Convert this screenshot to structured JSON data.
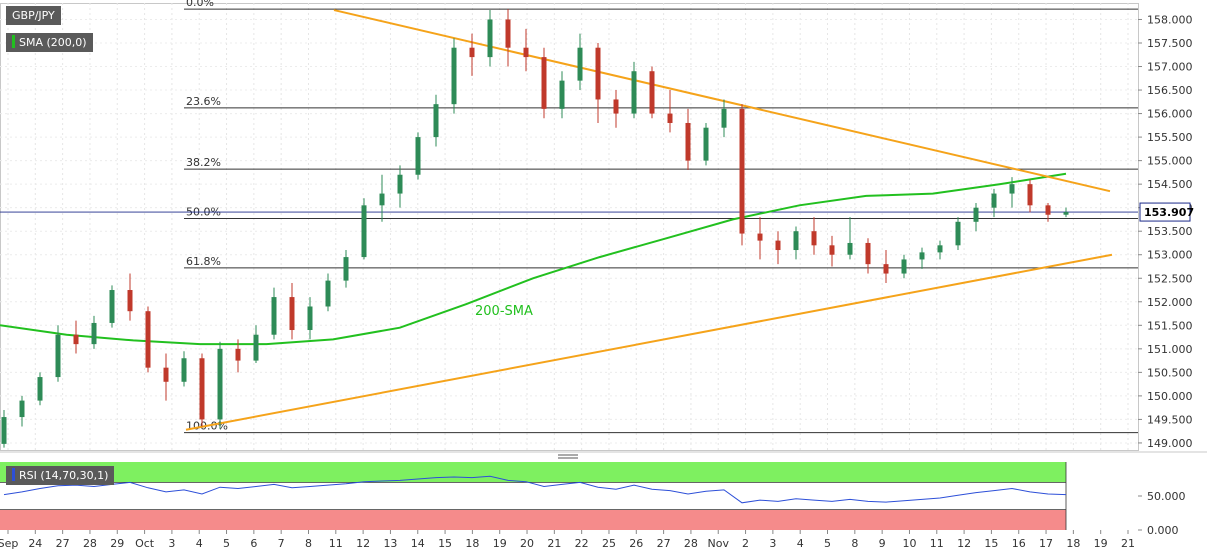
{
  "instrument": "GBP/JPY",
  "indicator_main": "SMA (200,0)",
  "indicator_rsi": "RSI (14,70,30,1)",
  "sma_annotation": "200-SMA",
  "last_price": "153.907",
  "colors": {
    "bull_candle": "#2e8b57",
    "bear_candle": "#c0392b",
    "sma_line": "#22c01f",
    "trend_lines": "#f5a31a",
    "rsi_line": "#2d4fd8",
    "rsi_overbought_zone": "#7ef060",
    "rsi_oversold_zone": "#f58b8b",
    "price_tag": "#ffffff"
  },
  "chart_data": [
    {
      "type": "candlestick",
      "title": "GBP/JPY",
      "y_ticks": [
        "158.000",
        "157.500",
        "157.000",
        "156.500",
        "156.000",
        "155.500",
        "155.000",
        "154.500",
        "154.000",
        "153.500",
        "153.000",
        "152.500",
        "152.000",
        "151.500",
        "151.000",
        "150.500",
        "150.000",
        "149.500",
        "149.000"
      ],
      "ylim": [
        148.85,
        158.35
      ],
      "x_ticks": [
        "Sep",
        "24",
        "27",
        "28",
        "29",
        "Oct",
        "3",
        "4",
        "5",
        "6",
        "7",
        "8",
        "11",
        "12",
        "13",
        "14",
        "15",
        "18",
        "19",
        "20",
        "21",
        "22",
        "25",
        "26",
        "27",
        "28",
        "Nov",
        "2",
        "3",
        "4",
        "5",
        "8",
        "9",
        "10",
        "11",
        "12",
        "15",
        "16",
        "17",
        "18",
        "19",
        "21"
      ],
      "fibonacci_levels": [
        {
          "label": "0.0%",
          "value": 158.22
        },
        {
          "label": "23.6%",
          "value": 156.12
        },
        {
          "label": "38.2%",
          "value": 154.82
        },
        {
          "label": "50.0%",
          "value": 153.77
        },
        {
          "label": "61.8%",
          "value": 152.72
        },
        {
          "label": "100.0%",
          "value": 149.22
        }
      ],
      "current_price": 153.907,
      "sma_200": [
        151.5,
        151.3,
        151.18,
        151.1,
        151.1,
        151.2,
        151.45,
        151.95,
        152.5,
        152.95,
        153.35,
        153.75,
        154.05,
        154.25,
        154.3,
        154.5,
        154.72
      ],
      "trend_lines": [
        {
          "name": "resistance",
          "points": [
            [
              20,
              158.2
            ],
            [
              62,
              154.35
            ]
          ]
        },
        {
          "name": "support",
          "points": [
            [
              0,
              149.28
            ],
            [
              62,
              153.0
            ]
          ]
        }
      ],
      "ohlc": [
        [
          148.98,
          149.7,
          148.9,
          149.55
        ],
        [
          149.55,
          150.0,
          149.35,
          149.9
        ],
        [
          149.9,
          150.5,
          149.8,
          150.4
        ],
        [
          150.4,
          151.5,
          150.3,
          151.3
        ],
        [
          151.3,
          151.6,
          150.9,
          151.1
        ],
        [
          151.1,
          151.7,
          151.0,
          151.55
        ],
        [
          151.55,
          152.35,
          151.45,
          152.25
        ],
        [
          152.25,
          152.6,
          151.6,
          151.8
        ],
        [
          151.8,
          151.9,
          150.5,
          150.6
        ],
        [
          150.6,
          150.9,
          149.9,
          150.3
        ],
        [
          150.3,
          150.95,
          150.2,
          150.8
        ],
        [
          150.8,
          150.9,
          149.35,
          149.5
        ],
        [
          149.5,
          151.15,
          149.3,
          151.0
        ],
        [
          151.0,
          151.2,
          150.5,
          150.75
        ],
        [
          150.75,
          151.5,
          150.7,
          151.3
        ],
        [
          151.3,
          152.3,
          151.2,
          152.1
        ],
        [
          152.1,
          152.4,
          151.2,
          151.4
        ],
        [
          151.4,
          152.1,
          151.2,
          151.9
        ],
        [
          151.9,
          152.6,
          151.8,
          152.45
        ],
        [
          152.45,
          153.1,
          152.3,
          152.95
        ],
        [
          152.95,
          154.2,
          152.9,
          154.05
        ],
        [
          154.05,
          154.7,
          153.7,
          154.3
        ],
        [
          154.3,
          154.9,
          154.0,
          154.7
        ],
        [
          154.7,
          155.6,
          154.6,
          155.5
        ],
        [
          155.5,
          156.4,
          155.3,
          156.2
        ],
        [
          156.2,
          157.6,
          156.0,
          157.4
        ],
        [
          157.4,
          157.7,
          156.8,
          157.2
        ],
        [
          157.2,
          158.2,
          157.0,
          158.0
        ],
        [
          158.0,
          158.22,
          157.0,
          157.4
        ],
        [
          157.4,
          157.8,
          156.9,
          157.2
        ],
        [
          157.2,
          157.4,
          155.9,
          156.1
        ],
        [
          156.1,
          156.9,
          155.9,
          156.7
        ],
        [
          156.7,
          157.7,
          156.5,
          157.4
        ],
        [
          157.4,
          157.5,
          155.8,
          156.3
        ],
        [
          156.3,
          156.5,
          155.7,
          156.0
        ],
        [
          156.0,
          157.1,
          155.9,
          156.9
        ],
        [
          156.9,
          157.0,
          155.9,
          156.0
        ],
        [
          156.0,
          156.5,
          155.6,
          155.8
        ],
        [
          155.8,
          156.1,
          154.8,
          155.0
        ],
        [
          155.0,
          155.8,
          154.9,
          155.7
        ],
        [
          155.7,
          156.3,
          155.5,
          156.1
        ],
        [
          156.1,
          156.2,
          153.2,
          153.45
        ],
        [
          153.45,
          153.8,
          152.9,
          153.3
        ],
        [
          153.3,
          153.5,
          152.8,
          153.1
        ],
        [
          153.1,
          153.6,
          152.9,
          153.5
        ],
        [
          153.5,
          153.8,
          153.0,
          153.2
        ],
        [
          153.2,
          153.4,
          152.75,
          153.0
        ],
        [
          153.0,
          153.8,
          152.9,
          153.25
        ],
        [
          153.25,
          153.35,
          152.6,
          152.8
        ],
        [
          152.8,
          153.1,
          152.4,
          152.6
        ],
        [
          152.6,
          153.0,
          152.5,
          152.9
        ],
        [
          152.9,
          153.15,
          152.7,
          153.05
        ],
        [
          153.05,
          153.3,
          152.9,
          153.2
        ],
        [
          153.2,
          153.8,
          153.1,
          153.7
        ],
        [
          153.7,
          154.1,
          153.5,
          154.0
        ],
        [
          154.0,
          154.4,
          153.8,
          154.3
        ],
        [
          154.3,
          154.65,
          154.0,
          154.5
        ],
        [
          154.5,
          154.6,
          153.9,
          154.05
        ],
        [
          154.05,
          154.1,
          153.7,
          153.85
        ],
        [
          153.85,
          154.0,
          153.8,
          153.907
        ]
      ]
    },
    {
      "type": "line",
      "title": "RSI (14,70,30,1)",
      "y_ticks": [
        "50.000",
        "0.000"
      ],
      "ylim": [
        0,
        100
      ],
      "overbought": 70,
      "oversold": 30,
      "values": [
        52,
        56,
        61,
        65,
        66,
        64,
        67,
        70,
        62,
        56,
        59,
        53,
        63,
        61,
        64,
        67,
        62,
        64,
        66,
        68,
        71,
        72,
        73,
        75,
        77,
        78,
        77,
        79,
        73,
        71,
        64,
        67,
        70,
        63,
        60,
        66,
        60,
        58,
        53,
        57,
        59,
        40,
        44,
        42,
        46,
        44,
        42,
        45,
        42,
        41,
        43,
        45,
        47,
        51,
        55,
        58,
        61,
        56,
        53,
        52
      ]
    }
  ]
}
